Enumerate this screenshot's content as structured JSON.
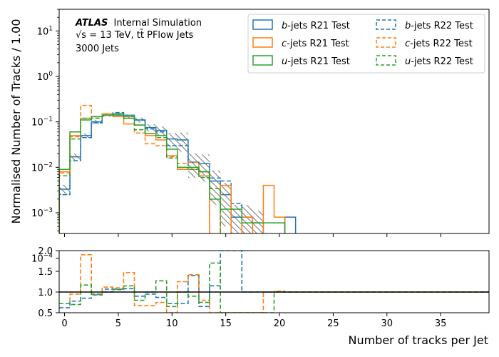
{
  "chart_data": [
    {
      "type": "histogram-step",
      "panel": "main",
      "xlabel": "Number of tracks per Jet",
      "ylabel": "Normalised Number of Tracks / 1.00",
      "yscale": "log",
      "xlim": [
        -0.5,
        39.5
      ],
      "ylim": [
        0.00035,
        30
      ],
      "x_ticks": [
        0,
        5,
        10,
        15,
        20,
        25,
        30,
        35
      ],
      "y_ticks": [
        {
          "value": 0.0001,
          "base": "10",
          "exp": "−4"
        },
        {
          "value": 0.001,
          "base": "10",
          "exp": "−3"
        },
        {
          "value": 0.01,
          "base": "10",
          "exp": "−2"
        },
        {
          "value": 0.1,
          "base": "10",
          "exp": "−1"
        },
        {
          "value": 1,
          "base": "10",
          "exp": "0"
        },
        {
          "value": 10,
          "base": "10",
          "exp": "1"
        }
      ],
      "annotations": {
        "atlas": "ATLAS",
        "atlas_suffix": "Internal Simulation",
        "line2": "√s = 13 TeV, tt̄ PFlow Jets",
        "line3": "3000 Jets"
      },
      "legend": {
        "position": "top-right",
        "entries": [
          {
            "flavour": "b",
            "text": "-jets R21 Test",
            "style": "solid",
            "color": "#1f77b4"
          },
          {
            "flavour": "b",
            "text": "-jets R22 Test",
            "style": "dashed",
            "color": "#1f77b4"
          },
          {
            "flavour": "c",
            "text": "-jets R21 Test",
            "style": "solid",
            "color": "#ff7f0e"
          },
          {
            "flavour": "c",
            "text": "-jets R22 Test",
            "style": "dashed",
            "color": "#ff7f0e"
          },
          {
            "flavour": "u",
            "text": "-jets R21 Test",
            "style": "solid",
            "color": "#2ca02c"
          },
          {
            "flavour": "u",
            "text": "-jets R22 Test",
            "style": "dashed",
            "color": "#2ca02c"
          }
        ]
      },
      "bin_edges_start": -0.5,
      "bin_width": 1,
      "series": [
        {
          "name": "b-jets R21 Test",
          "color": "#1f77b4",
          "style": "solid",
          "values": [
            0.0033,
            0.017,
            0.05,
            0.1,
            0.14,
            0.15,
            0.13,
            0.11,
            0.075,
            0.065,
            0.042,
            0.04,
            0.013,
            0.012,
            0.005,
            0.0025,
            0.0008,
            0.0008,
            0.0006,
            0,
            0,
            0.0008
          ]
        },
        {
          "name": "b-jets R22 Test",
          "color": "#1f77b4",
          "style": "dashed",
          "values": [
            0.0025,
            0.014,
            0.045,
            0.095,
            0.15,
            0.16,
            0.14,
            0.11,
            0.07,
            0.06,
            0.03,
            0.03,
            0.009,
            0.008,
            0.0058,
            0.005,
            0.0016,
            0,
            0,
            0,
            0,
            0
          ]
        },
        {
          "name": "c-jets R21 Test",
          "color": "#ff7f0e",
          "style": "solid",
          "values": [
            0.008,
            0.05,
            0.12,
            0.13,
            0.15,
            0.13,
            0.09,
            0.085,
            0.05,
            0.04,
            0.018,
            0.009,
            0.009,
            0.008,
            0,
            0.004,
            0,
            0.0008,
            0,
            0.004,
            0.0008,
            0
          ]
        },
        {
          "name": "c-jets R22 Test",
          "color": "#ff7f0e",
          "style": "dashed",
          "values": [
            0.0075,
            0.047,
            0.23,
            0.12,
            0.15,
            0.14,
            0.13,
            0.057,
            0.033,
            0.03,
            0.017,
            0.012,
            0.0128,
            0.0065,
            0,
            0,
            0,
            0,
            0,
            0,
            0,
            0
          ]
        },
        {
          "name": "u-jets R21 Test",
          "color": "#2ca02c",
          "style": "solid",
          "values": [
            0.009,
            0.06,
            0.11,
            0.13,
            0.14,
            0.14,
            0.12,
            0.085,
            0.055,
            0.05,
            0.025,
            0.01,
            0.01,
            0.008,
            0.002,
            0.0012,
            0.0012,
            0.0006,
            0.0006,
            0.0006,
            0.0006,
            0
          ]
        },
        {
          "name": "u-jets R22 Test",
          "color": "#2ca02c",
          "style": "dashed",
          "values": [
            0.0065,
            0.042,
            0.12,
            0.12,
            0.14,
            0.15,
            0.14,
            0.067,
            0.055,
            0.045,
            0.016,
            0.01,
            0.009,
            0.006,
            0.0034,
            0,
            0,
            0,
            0,
            0,
            0,
            0
          ]
        }
      ],
      "uncertainty_band_relative": [
        0.25,
        0.18,
        0.12,
        0.1,
        0.08,
        0.09,
        0.11,
        0.13,
        0.18,
        0.22,
        0.35,
        0.45,
        0.55,
        0.6,
        0.7,
        0.8,
        0.85,
        0.85,
        0.85,
        0.85,
        0.85,
        0
      ]
    },
    {
      "type": "ratio-step",
      "panel": "ratio",
      "ylim": [
        0.5,
        2.0
      ],
      "y_ticks": [
        0.5,
        1.0,
        1.5,
        2.0
      ],
      "y_tick_labels": [
        "0.5",
        "1.0",
        "1.5",
        "2.0"
      ],
      "x_ticks": [
        0,
        5,
        10,
        15,
        20,
        25,
        30,
        35
      ],
      "x_tick_labels": [
        "0",
        "5",
        "10",
        "15",
        "20",
        "25",
        "30",
        "35"
      ],
      "reference_line": 1.0,
      "series": [
        {
          "name": "b-jets ratio",
          "color": "#1f77b4",
          "values": [
            0.62,
            0.78,
            0.85,
            0.95,
            1.07,
            1.06,
            1.08,
            0.9,
            0.95,
            0.87,
            0.72,
            0.72,
            1.4,
            0.65,
            1.15,
            2.0,
            2.0,
            1.0,
            1.0,
            1.0,
            1.0,
            1.0,
            1.0,
            1.0,
            1.0,
            1.0,
            1.0,
            1.0,
            1.0,
            1.0,
            1.0,
            1.0,
            1.0,
            1.0,
            1.0,
            1.0,
            1.0,
            1.0,
            1.0,
            1.0
          ]
        },
        {
          "name": "c-jets ratio",
          "color": "#ff7f0e",
          "values": [
            0.72,
            0.95,
            1.9,
            0.93,
            1.12,
            1.1,
            1.47,
            0.67,
            0.67,
            0.75,
            0.5,
            1.25,
            1.42,
            0.8,
            0.5,
            0.5,
            0.5,
            0.5,
            0.5,
            1.0,
            1.02,
            1.0,
            1.0,
            1.0,
            1.0,
            1.0,
            1.0,
            1.0,
            1.0,
            1.0,
            1.0,
            1.0,
            1.0,
            1.0,
            1.0,
            1.0,
            1.0,
            1.0,
            1.0,
            1.0
          ]
        },
        {
          "name": "u-jets ratio",
          "color": "#2ca02c",
          "values": [
            0.72,
            0.7,
            1.17,
            0.93,
            1.0,
            1.07,
            1.15,
            0.8,
            1.0,
            1.27,
            0.65,
            1.0,
            0.9,
            0.75,
            1.7,
            0.5,
            0.5,
            0.5,
            0.5,
            0.5,
            1.0,
            1.0,
            1.0,
            1.0,
            1.0,
            1.0,
            1.0,
            1.0,
            1.0,
            1.0,
            1.0,
            1.0,
            1.0,
            1.0,
            1.0,
            1.0,
            1.0,
            1.0,
            1.0,
            1.0
          ]
        }
      ]
    }
  ]
}
